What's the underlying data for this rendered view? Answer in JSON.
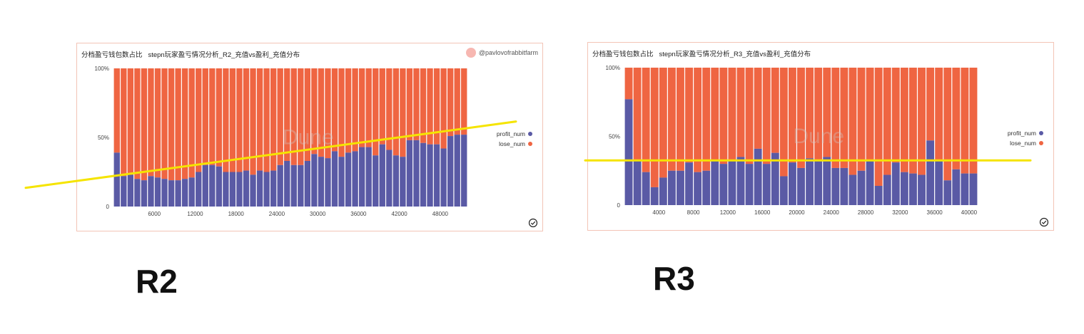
{
  "colors": {
    "profit": "#5a5aa5",
    "lose": "#ef6542",
    "trend": "#f5e400",
    "watermark": "#cccccc"
  },
  "labels": {
    "r2": "R2",
    "r3": "R3"
  },
  "watermark": "Dune",
  "chart_data": [
    {
      "type": "bar",
      "id": "r2",
      "title": "分档盈亏钱包数占比",
      "subtitle": "stepn玩家盈亏情况分析_R2_充值vs盈利_充值分布",
      "author": "@pavlovofrabbitfarm",
      "stacked_percent": true,
      "bin_width": 1000,
      "x_ticks": [
        "6000",
        "12000",
        "18000",
        "24000",
        "30000",
        "36000",
        "42000",
        "48000"
      ],
      "x_tick_values": [
        6000,
        12000,
        18000,
        24000,
        30000,
        36000,
        42000,
        48000
      ],
      "y_ticks": [
        "0",
        "50%",
        "100%"
      ],
      "ylim": [
        0,
        100
      ],
      "series": [
        {
          "name": "profit_num",
          "values": [
            39,
            22,
            23,
            20,
            19,
            22,
            21,
            20,
            19,
            19,
            20,
            21,
            25,
            30,
            30,
            29,
            25,
            25,
            25,
            26,
            23,
            26,
            25,
            26,
            30,
            33,
            30,
            30,
            33,
            38,
            36,
            35,
            40,
            36,
            39,
            40,
            43,
            43,
            37,
            45,
            41,
            37,
            36,
            48,
            48,
            46,
            45,
            45,
            42,
            51,
            52,
            52
          ]
        },
        {
          "name": "lose_num",
          "values": [
            61,
            78,
            77,
            80,
            81,
            78,
            79,
            80,
            81,
            81,
            80,
            79,
            75,
            70,
            70,
            71,
            75,
            75,
            75,
            74,
            77,
            74,
            75,
            74,
            70,
            67,
            70,
            70,
            67,
            62,
            64,
            65,
            60,
            64,
            61,
            60,
            57,
            57,
            63,
            55,
            59,
            63,
            64,
            52,
            52,
            54,
            55,
            55,
            58,
            49,
            48,
            48
          ]
        }
      ],
      "trend_line": {
        "start_percent": 13,
        "end_percent": 61
      }
    },
    {
      "type": "bar",
      "id": "r3",
      "title": "分档盈亏钱包数占比",
      "subtitle": "stepn玩家盈亏情况分析_R3_充值vs盈利_充值分布",
      "stacked_percent": true,
      "bin_width": 1000,
      "x_ticks": [
        "4000",
        "8000",
        "12000",
        "16000",
        "20000",
        "24000",
        "28000",
        "32000",
        "36000",
        "40000"
      ],
      "x_tick_values": [
        4000,
        8000,
        12000,
        16000,
        20000,
        24000,
        28000,
        32000,
        36000,
        40000
      ],
      "y_ticks": [
        "0",
        "50%",
        "100%"
      ],
      "ylim": [
        0,
        100
      ],
      "series": [
        {
          "name": "profit_num",
          "values": [
            77,
            32,
            24,
            13,
            20,
            25,
            25,
            31,
            24,
            25,
            32,
            30,
            33,
            35,
            30,
            41,
            30,
            38,
            21,
            31,
            27,
            34,
            33,
            35,
            27,
            27,
            22,
            25,
            32,
            14,
            22,
            31,
            24,
            23,
            22,
            47,
            32,
            18,
            26,
            23,
            23
          ]
        },
        {
          "name": "lose_num",
          "values": [
            23,
            68,
            76,
            87,
            80,
            75,
            75,
            69,
            76,
            75,
            68,
            70,
            67,
            65,
            70,
            59,
            70,
            62,
            79,
            69,
            73,
            66,
            67,
            65,
            73,
            73,
            78,
            75,
            68,
            86,
            78,
            69,
            76,
            77,
            78,
            53,
            68,
            82,
            74,
            77,
            77
          ]
        }
      ],
      "trend_line": {
        "start_percent": 32,
        "end_percent": 32
      }
    }
  ]
}
